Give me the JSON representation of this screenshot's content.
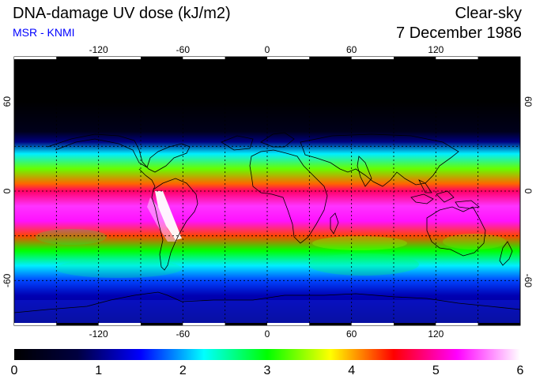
{
  "header": {
    "title": "DNA-damage UV dose (kJ/m2)",
    "subtitle": "MSR - KNMI",
    "sky": "Clear-sky",
    "date": "7 December 1986"
  },
  "colors": {
    "subtitle": "#0000ff",
    "grid": "#000000",
    "coast": "#000000"
  },
  "map": {
    "lon_ticks": [
      "-120",
      "-60",
      "0",
      "60",
      "120"
    ],
    "lat_ticks": [
      "60",
      "0",
      "-60"
    ],
    "lat_ticks_right": [
      "60",
      "0",
      "-60"
    ]
  },
  "colorbar": {
    "labels": [
      "0",
      "1",
      "2",
      "3",
      "4",
      "5",
      "6"
    ],
    "stops": [
      "#000000",
      "#000040",
      "#0000ff",
      "#00ffff",
      "#00ff00",
      "#ffff00",
      "#ff0000",
      "#ff00ff",
      "#ffffff"
    ]
  },
  "chart_data": {
    "type": "heatmap",
    "title": "DNA-damage UV dose (kJ/m2)",
    "condition": "Clear-sky",
    "date": "7 December 1986",
    "value_range": [
      0,
      6
    ],
    "lon_range": [
      -180,
      180
    ],
    "lat_range": [
      -90,
      90
    ],
    "lat_profile": [
      {
        "lat": 90,
        "dose": 0
      },
      {
        "lat": 60,
        "dose": 0
      },
      {
        "lat": 40,
        "dose": 0.3
      },
      {
        "lat": 33,
        "dose": 1.0
      },
      {
        "lat": 25,
        "dose": 2.2
      },
      {
        "lat": 15,
        "dose": 3.3
      },
      {
        "lat": 5,
        "dose": 4.2
      },
      {
        "lat": 0,
        "dose": 4.8
      },
      {
        "lat": -10,
        "dose": 5.4
      },
      {
        "lat": -20,
        "dose": 5.3
      },
      {
        "lat": -30,
        "dose": 4.3
      },
      {
        "lat": -40,
        "dose": 3.0
      },
      {
        "lat": -50,
        "dose": 2.2
      },
      {
        "lat": -60,
        "dose": 1.7
      },
      {
        "lat": -70,
        "dose": 1.2
      },
      {
        "lat": -80,
        "dose": 1.1
      },
      {
        "lat": -90,
        "dose": 1.0
      }
    ]
  }
}
